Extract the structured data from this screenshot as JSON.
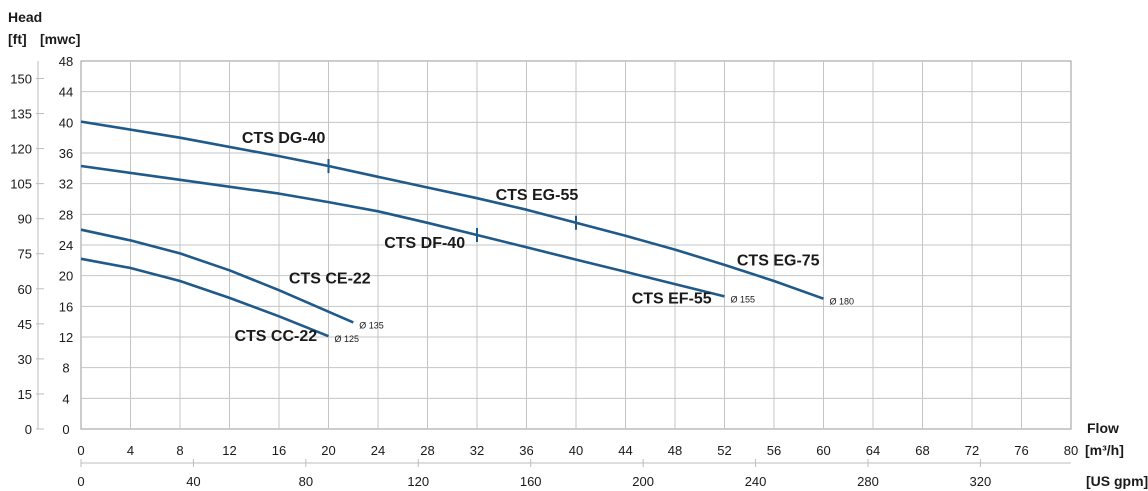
{
  "chart_data": {
    "type": "line",
    "y_title": "Head",
    "y_units_ft": "[ft]",
    "y_units_mwc": "[mwc]",
    "x_title": "Flow",
    "x_units_m3h": "[m³/h]",
    "x_units_usgpm": "[US gpm]",
    "xlim": [
      0,
      80
    ],
    "ylim": [
      0,
      48
    ],
    "grid": true,
    "x_ticks": [
      0,
      4,
      8,
      12,
      16,
      20,
      24,
      28,
      32,
      36,
      40,
      44,
      48,
      52,
      56,
      60,
      64,
      68,
      72,
      76,
      80
    ],
    "y_ticks_mwc": [
      0,
      4,
      8,
      12,
      16,
      20,
      24,
      28,
      32,
      36,
      40,
      44,
      48
    ],
    "y_ticks_ft": [
      0,
      15,
      30,
      45,
      60,
      75,
      90,
      105,
      120,
      135,
      150
    ],
    "x_ticks_usgpm": [
      0,
      40,
      80,
      120,
      160,
      200,
      240,
      280,
      320
    ],
    "line_color": "#1f5a8a",
    "series": [
      {
        "name": "CTS CC-22",
        "x": [
          0,
          4,
          8,
          12,
          16,
          20
        ],
        "y": [
          22.2,
          21.0,
          19.3,
          17.1,
          14.7,
          12.1
        ],
        "end_label": "Ø 125",
        "label_at": [
          12.4,
          11.5
        ]
      },
      {
        "name": "CTS CE-22",
        "x": [
          0,
          4,
          8,
          12,
          16,
          20,
          22
        ],
        "y": [
          26.0,
          24.6,
          22.9,
          20.7,
          18.1,
          15.3,
          13.9
        ],
        "end_label": "Ø 135",
        "label_at": [
          16.8,
          19.0
        ]
      },
      {
        "name": "CTS DF-40",
        "x": [
          0,
          8,
          16,
          20,
          24,
          28,
          32
        ],
        "y": [
          34.3,
          32.5,
          30.7,
          29.6,
          28.4,
          26.9,
          25.3
        ],
        "name2": "CTS EF-55",
        "x2": [
          32,
          36,
          40,
          44,
          48,
          52
        ],
        "y2": [
          25.3,
          23.7,
          22.1,
          20.5,
          18.9,
          17.3
        ],
        "tick_at": 32,
        "end_label": "Ø 155",
        "label_at": [
          24.5,
          23.6
        ],
        "label2_at": [
          44.5,
          16.4
        ]
      },
      {
        "name": "CTS DG-40",
        "x": [
          0,
          8,
          16,
          20
        ],
        "y": [
          40.1,
          38.0,
          35.6,
          34.3
        ],
        "name2": "CTS EG-55",
        "x2": [
          20,
          24,
          28,
          32,
          36,
          40
        ],
        "y2": [
          34.3,
          32.9,
          31.5,
          30.1,
          28.6,
          26.9
        ],
        "name3": "CTS EG-75",
        "x3": [
          40,
          44,
          48,
          52,
          56,
          60
        ],
        "y3": [
          26.9,
          25.2,
          23.4,
          21.4,
          19.3,
          17.0
        ],
        "tick_at": [
          20,
          40
        ],
        "end_label": "Ø 180",
        "label_at": [
          13.0,
          37.3
        ],
        "label2_at": [
          33.5,
          29.9
        ],
        "label3_at": [
          53.0,
          21.3
        ]
      }
    ]
  }
}
